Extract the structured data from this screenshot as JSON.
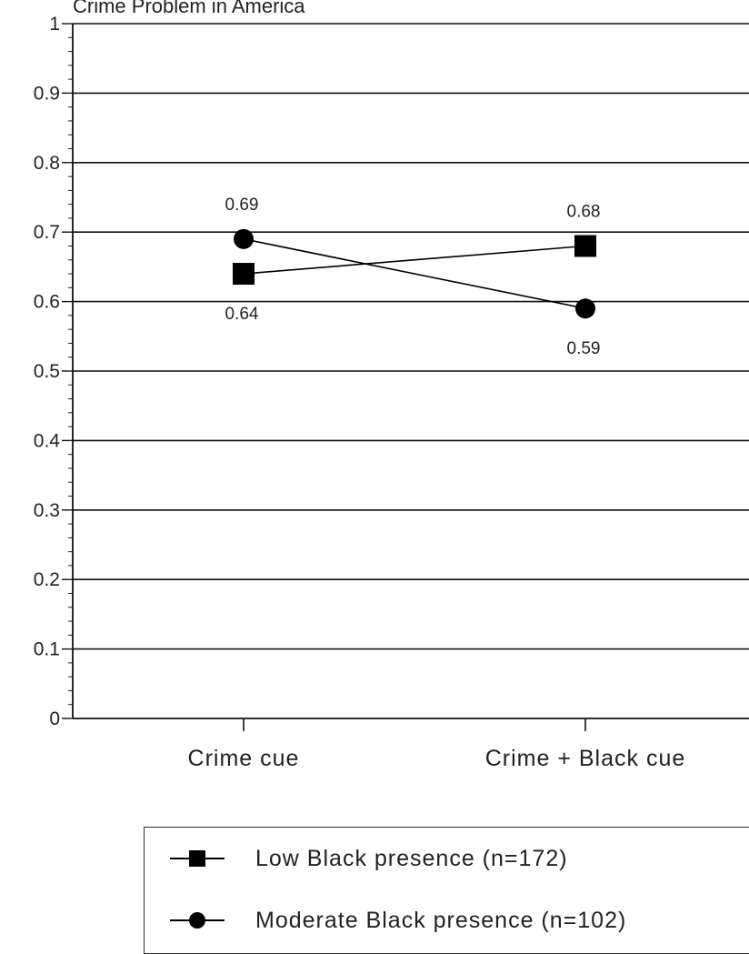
{
  "chart_data": {
    "type": "line",
    "title": "Crime Problem in America",
    "categories": [
      "Crime cue",
      "Crime + Black cue"
    ],
    "ylim": [
      0,
      1
    ],
    "yticks": [
      "0",
      "0.1",
      "0.2",
      "0.3",
      "0.4",
      "0.5",
      "0.6",
      "0.7",
      "0.8",
      "0.9",
      "1"
    ],
    "grid": true,
    "legend_position": "bottom",
    "series": [
      {
        "name": "Low Black presence (n=172)",
        "marker": "square",
        "values": [
          0.64,
          0.68
        ],
        "labels": [
          "0.64",
          "0.68"
        ],
        "color": "#000000"
      },
      {
        "name": "Moderate Black presence (n=102)",
        "marker": "circle",
        "values": [
          0.69,
          0.59
        ],
        "labels": [
          "0.69",
          "0.59"
        ],
        "color": "#000000"
      }
    ]
  }
}
